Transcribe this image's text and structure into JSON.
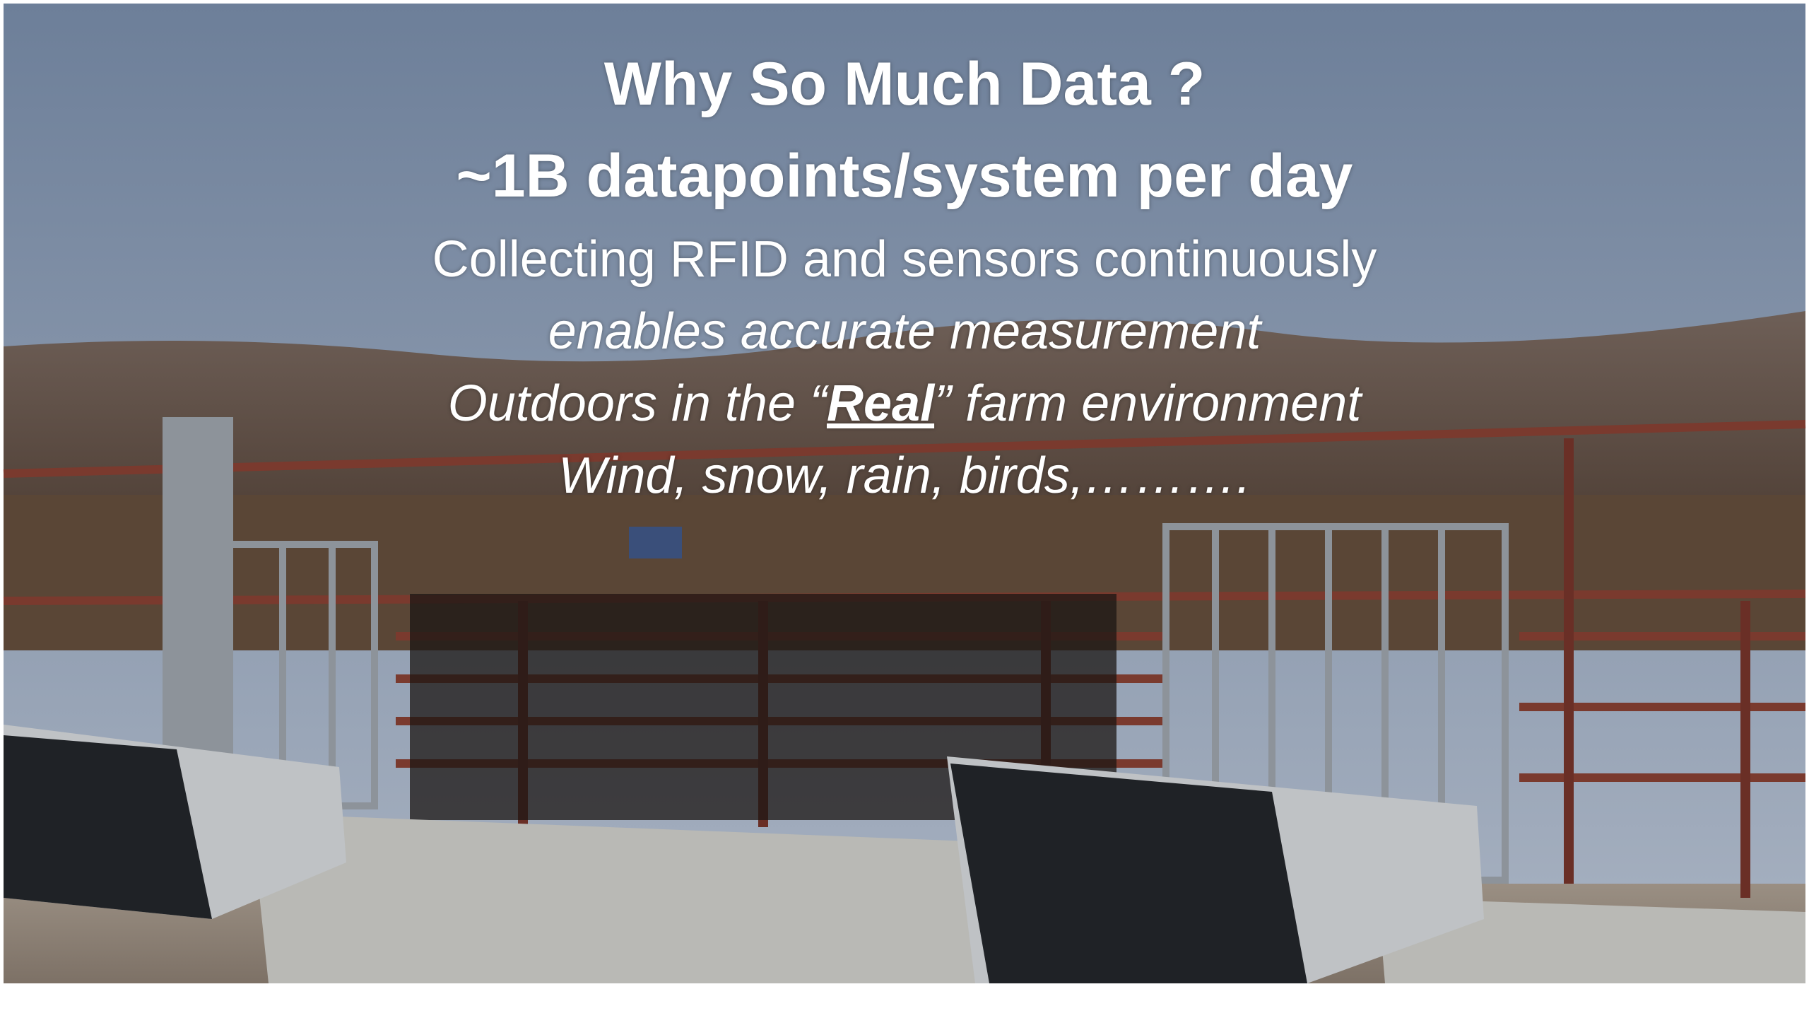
{
  "slide": {
    "lines": [
      "Why So Much Data ?",
      "~1B datapoints/system per day",
      "Collecting RFID and sensors continuously",
      "enables accurate measurement",
      {
        "before": "Outdoors in the “",
        "emphasis": "Real",
        "after": "” farm environment"
      },
      "Wind, snow, rain, birds,………."
    ]
  }
}
